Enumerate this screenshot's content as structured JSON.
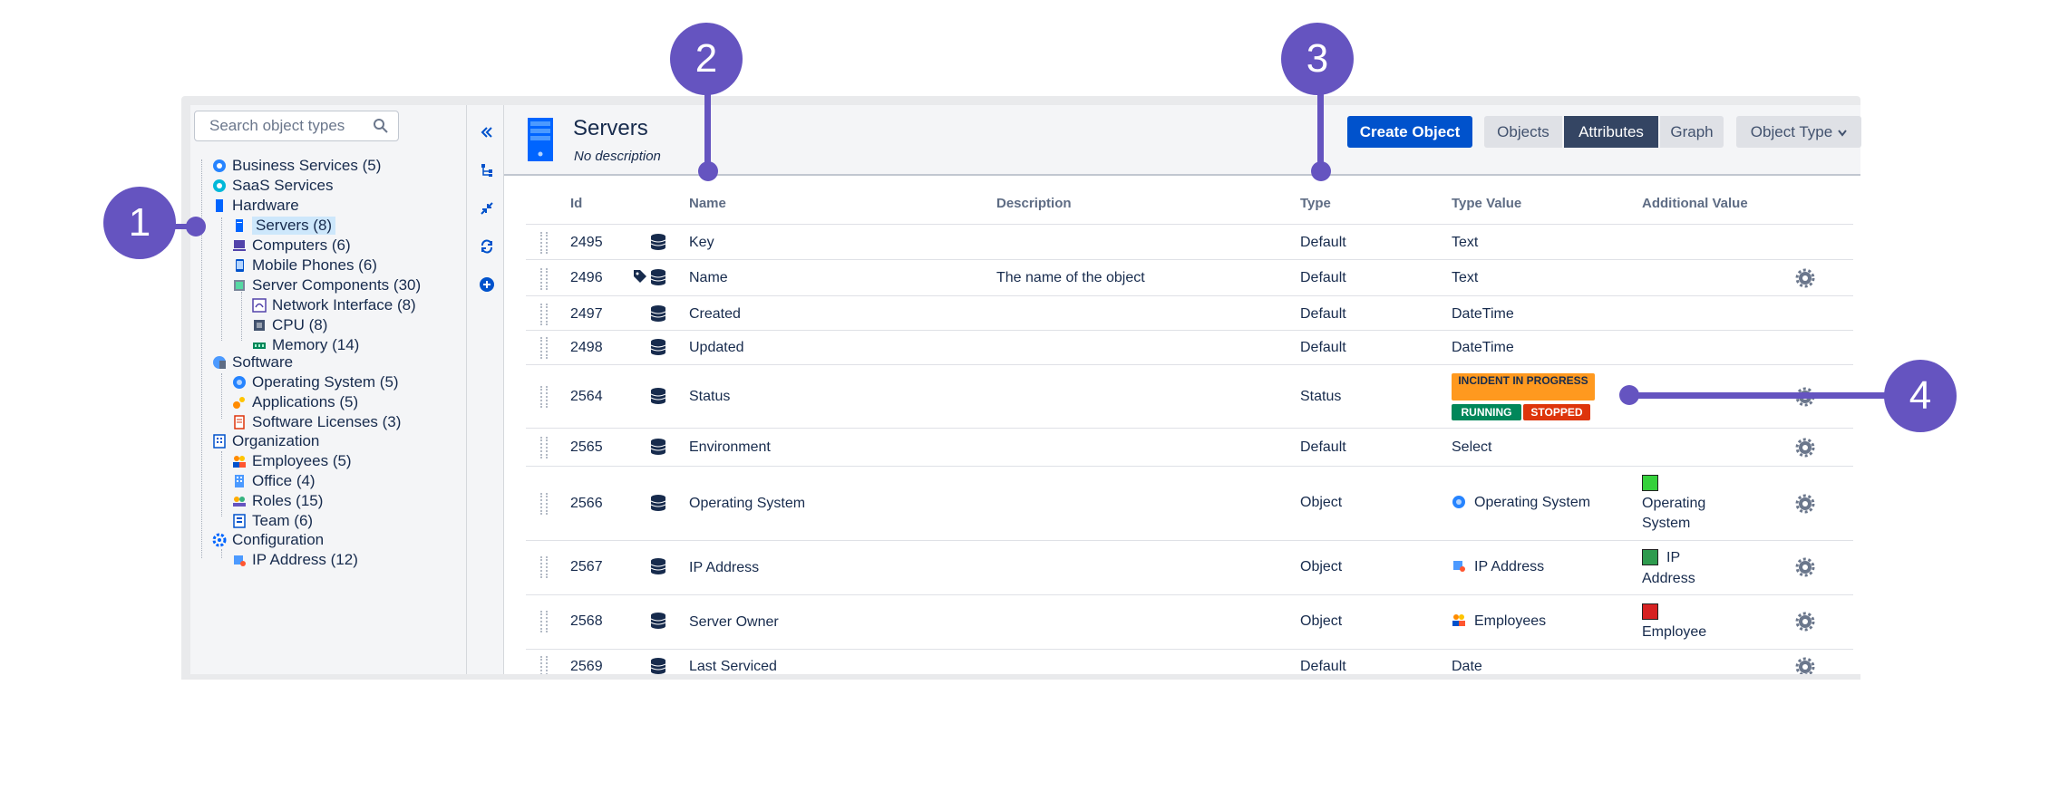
{
  "sidebar": {
    "search_placeholder": "Search object types",
    "tree": [
      {
        "label": "Business Services (5)",
        "icon": "business-service-icon"
      },
      {
        "label": "SaaS Services",
        "icon": "saas-service-icon"
      },
      {
        "label": "Hardware",
        "icon": "hardware-icon"
      },
      {
        "label": "Servers (8)",
        "icon": "server-icon"
      },
      {
        "label": "Computers (6)",
        "icon": "computer-icon"
      },
      {
        "label": "Mobile Phones (6)",
        "icon": "mobile-phone-icon"
      },
      {
        "label": "Server Components (30)",
        "icon": "server-components-icon"
      },
      {
        "label": "Network Interface (8)",
        "icon": "network-interface-icon"
      },
      {
        "label": "CPU (8)",
        "icon": "cpu-icon"
      },
      {
        "label": "Memory (14)",
        "icon": "memory-icon"
      },
      {
        "label": "Software",
        "icon": "software-icon"
      },
      {
        "label": "Operating System (5)",
        "icon": "operating-system-icon"
      },
      {
        "label": "Applications (5)",
        "icon": "applications-icon"
      },
      {
        "label": "Software Licenses (3)",
        "icon": "license-icon"
      },
      {
        "label": "Organization",
        "icon": "organization-icon"
      },
      {
        "label": "Employees (5)",
        "icon": "employees-icon"
      },
      {
        "label": "Office (4)",
        "icon": "office-icon"
      },
      {
        "label": "Roles (15)",
        "icon": "roles-icon"
      },
      {
        "label": "Team (6)",
        "icon": "team-icon"
      },
      {
        "label": "Configuration",
        "icon": "configuration-icon"
      },
      {
        "label": "IP Address (12)",
        "icon": "ip-address-icon"
      }
    ]
  },
  "header": {
    "title": "Servers",
    "subtitle": "No description",
    "create_button": "Create Object",
    "tabs": [
      "Objects",
      "Attributes",
      "Graph"
    ],
    "active_tab": "Attributes",
    "object_type_dropdown": "Object Type"
  },
  "table": {
    "columns": [
      "Id",
      "Name",
      "Description",
      "Type",
      "Type Value",
      "Additional Value"
    ],
    "rows": [
      {
        "id": "2495",
        "name": "Key",
        "description": "",
        "type": "Default",
        "type_value": "Text",
        "additional": ""
      },
      {
        "id": "2496",
        "name": "Name",
        "description": "The name of the object",
        "type": "Default",
        "type_value": "Text",
        "additional": ""
      },
      {
        "id": "2497",
        "name": "Created",
        "description": "",
        "type": "Default",
        "type_value": "DateTime",
        "additional": ""
      },
      {
        "id": "2498",
        "name": "Updated",
        "description": "",
        "type": "Default",
        "type_value": "DateTime",
        "additional": ""
      },
      {
        "id": "2564",
        "name": "Status",
        "description": "",
        "type": "Status",
        "type_value": "",
        "additional": ""
      },
      {
        "id": "2565",
        "name": "Environment",
        "description": "",
        "type": "Default",
        "type_value": "Select",
        "additional": ""
      },
      {
        "id": "2566",
        "name": "Operating System",
        "description": "",
        "type": "Object",
        "type_value": "Operating System",
        "additional_1": "Operating",
        "additional_2": "System"
      },
      {
        "id": "2567",
        "name": "IP Address",
        "description": "",
        "type": "Object",
        "type_value": "IP Address",
        "additional_1": "IP",
        "additional_2": "Address"
      },
      {
        "id": "2568",
        "name": "Server Owner",
        "description": "",
        "type": "Object",
        "type_value": "Employees",
        "additional_1": "",
        "additional_2": "Employee"
      },
      {
        "id": "2569",
        "name": "Last Serviced",
        "description": "",
        "type": "Default",
        "type_value": "Date",
        "additional": ""
      }
    ],
    "status_badges": [
      {
        "label": "INCIDENT IN PROGRESS",
        "color": "#ff991f"
      },
      {
        "label": "RUNNING",
        "color": "#00875a"
      },
      {
        "label": "STOPPED",
        "color": "#de350b"
      }
    ],
    "swatch_colors": [
      "#36d13c",
      "#2e9b4e",
      "#d62222"
    ]
  },
  "callouts": [
    "1",
    "2",
    "3",
    "4"
  ],
  "accent_color": "#6554c0"
}
